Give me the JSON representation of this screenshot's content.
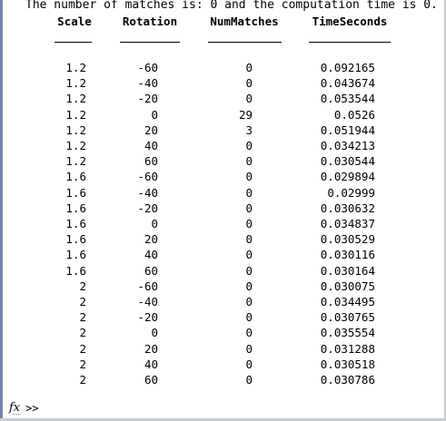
{
  "console": {
    "message": "The number of matches is: 0 and the computation time is 0.",
    "prompt_symbol": ">>",
    "fx_icon": "function-browser-icon"
  },
  "table": {
    "columns": [
      "Scale",
      "Rotation",
      "NumMatches",
      "TimeSeconds"
    ],
    "rows": [
      [
        "1.2",
        "-60",
        "0",
        "0.092165"
      ],
      [
        "1.2",
        "-40",
        "0",
        "0.043674"
      ],
      [
        "1.2",
        "-20",
        "0",
        "0.053544"
      ],
      [
        "1.2",
        "0",
        "29",
        "0.0526"
      ],
      [
        "1.2",
        "20",
        "3",
        "0.051944"
      ],
      [
        "1.2",
        "40",
        "0",
        "0.034213"
      ],
      [
        "1.2",
        "60",
        "0",
        "0.030544"
      ],
      [
        "1.6",
        "-60",
        "0",
        "0.029894"
      ],
      [
        "1.6",
        "-40",
        "0",
        "0.02999"
      ],
      [
        "1.6",
        "-20",
        "0",
        "0.030632"
      ],
      [
        "1.6",
        "0",
        "0",
        "0.034837"
      ],
      [
        "1.6",
        "20",
        "0",
        "0.030529"
      ],
      [
        "1.6",
        "40",
        "0",
        "0.030116"
      ],
      [
        "1.6",
        "60",
        "0",
        "0.030164"
      ],
      [
        "2",
        "-60",
        "0",
        "0.030075"
      ],
      [
        "2",
        "-40",
        "0",
        "0.034495"
      ],
      [
        "2",
        "-20",
        "0",
        "0.030765"
      ],
      [
        "2",
        "0",
        "0",
        "0.035554"
      ],
      [
        "2",
        "20",
        "0",
        "0.031288"
      ],
      [
        "2",
        "40",
        "0",
        "0.030518"
      ],
      [
        "2",
        "60",
        "0",
        "0.030786"
      ]
    ]
  }
}
